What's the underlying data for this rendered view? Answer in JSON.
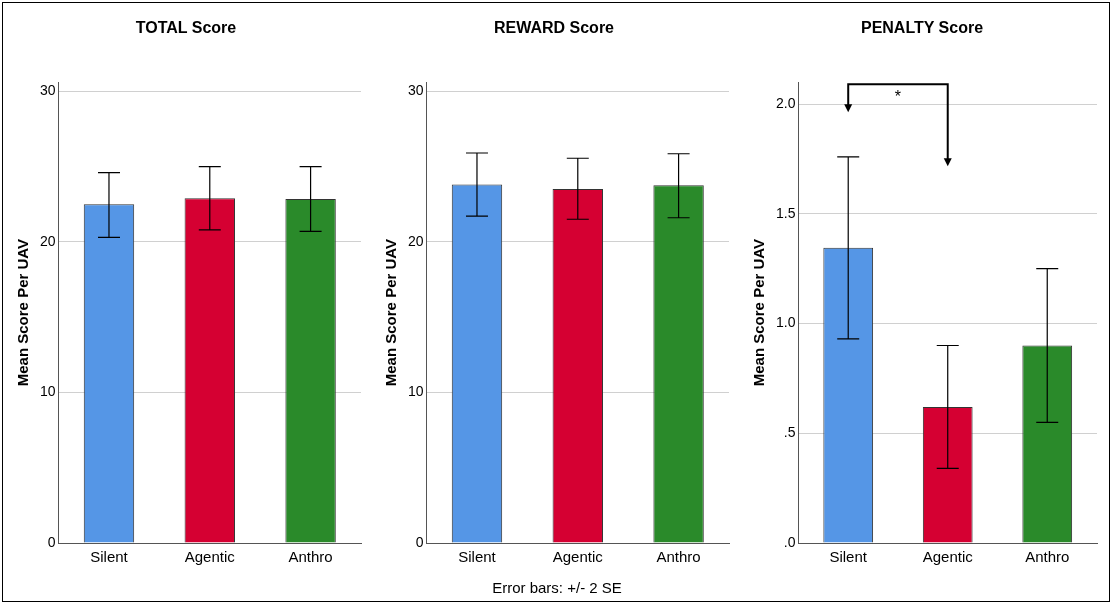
{
  "chart_data": [
    {
      "type": "bar",
      "title": "TOTAL Score",
      "ylabel": "Mean Score Per UAV",
      "categories": [
        "Silent",
        "Agentic",
        "Anthro"
      ],
      "values": [
        22.5,
        22.9,
        22.85
      ],
      "colors": [
        "#5596e6",
        "#d50032",
        "#2a8a2a"
      ],
      "errors": [
        [
          20.3,
          24.6
        ],
        [
          20.8,
          25.0
        ],
        [
          20.7,
          25.0
        ]
      ],
      "ylim": [
        0,
        30.6
      ],
      "yticks": [
        0,
        10,
        20,
        30
      ],
      "grid": "y"
    },
    {
      "type": "bar",
      "title": "REWARD Score",
      "ylabel": "Mean Score Per UAV",
      "categories": [
        "Silent",
        "Agentic",
        "Anthro"
      ],
      "values": [
        23.8,
        23.5,
        23.75
      ],
      "colors": [
        "#5596e6",
        "#d50032",
        "#2a8a2a"
      ],
      "errors": [
        [
          21.7,
          25.9
        ],
        [
          21.5,
          25.55
        ],
        [
          21.6,
          25.85
        ]
      ],
      "ylim": [
        0,
        30.6
      ],
      "yticks": [
        0,
        10,
        20,
        30
      ],
      "grid": "y"
    },
    {
      "type": "bar",
      "title": "PENALTY Score",
      "ylabel": "Mean Score Per UAV",
      "categories": [
        "Silent",
        "Agentic",
        "Anthro"
      ],
      "values": [
        1.345,
        0.62,
        0.9
      ],
      "colors": [
        "#5596e6",
        "#d50032",
        "#2a8a2a"
      ],
      "errors": [
        [
          0.93,
          1.76
        ],
        [
          0.34,
          0.9
        ],
        [
          0.55,
          1.25
        ]
      ],
      "ylim": [
        0,
        2.1
      ],
      "yticks": [
        {
          "value": 0,
          "label": ".0"
        },
        {
          "value": 0.5,
          "label": ".5"
        },
        {
          "value": 1,
          "label": "1.0"
        },
        {
          "value": 1.5,
          "label": "1.5"
        },
        {
          "value": 2,
          "label": "2.0"
        }
      ],
      "grid": "y",
      "annotations": [
        "*"
      ]
    },
    {
      "type": "other",
      "annotations": [
        "Error bars: +/- 2 SE"
      ]
    }
  ]
}
